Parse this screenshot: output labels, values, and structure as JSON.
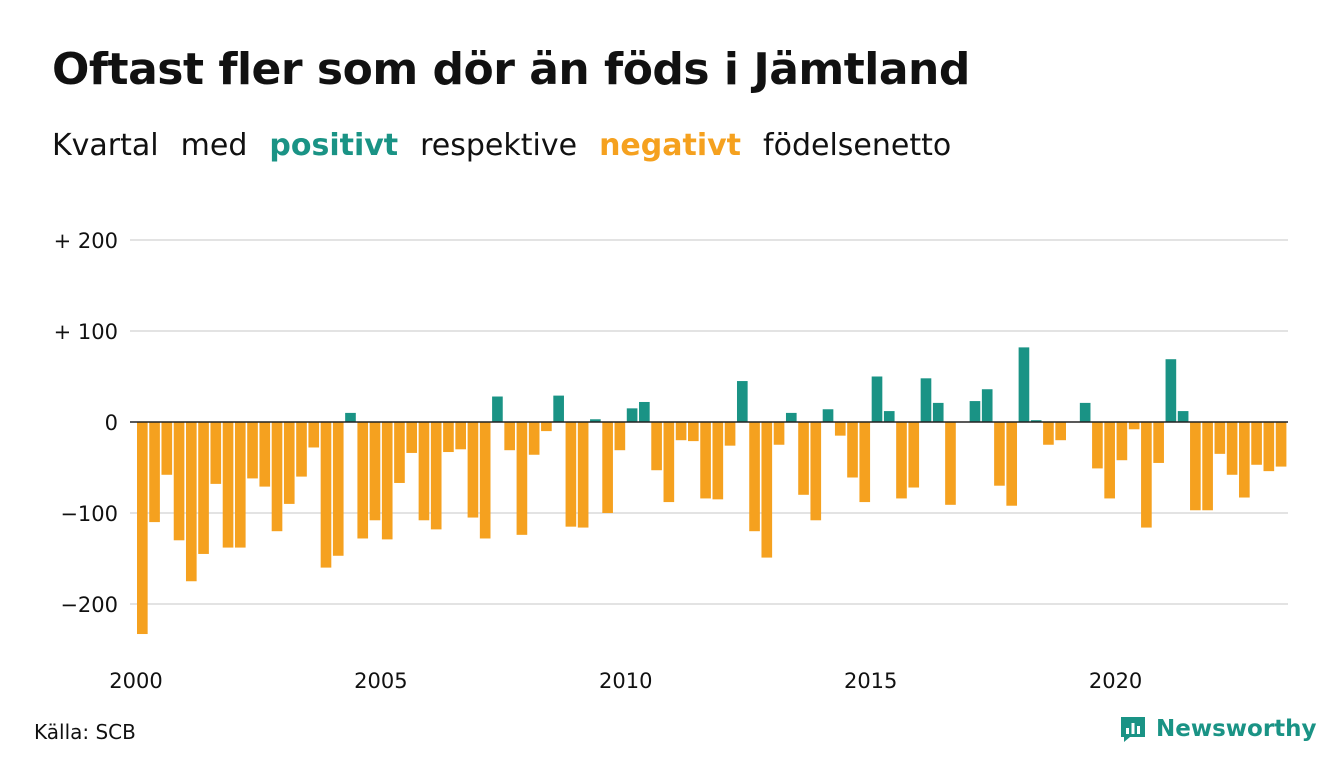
{
  "title": "Oftast fler som dör än föds i Jämtland",
  "subtitle": {
    "w1": "Kvartal",
    "w2": "med",
    "positive": "positivt",
    "w3": "respektive",
    "negative": "negativt",
    "w4": "födelsenetto"
  },
  "colors": {
    "positive": "#1a9385",
    "negative": "#f5a11f",
    "grid": "#e3e3e3",
    "zero_line": "#222222"
  },
  "source": "Källa: SCB",
  "brand": {
    "name": "Newsworthy",
    "icon": "newsworthy-logo-icon"
  },
  "chart_data": {
    "type": "bar",
    "x_start": "2000 Q1",
    "x_ticks": [
      {
        "value": 2000,
        "label": "2000"
      },
      {
        "value": 2005,
        "label": "2005"
      },
      {
        "value": 2010,
        "label": "2010"
      },
      {
        "value": 2015,
        "label": "2015"
      },
      {
        "value": 2020,
        "label": "2020"
      }
    ],
    "y_ticks": [
      {
        "value": 200,
        "label": "+ 200"
      },
      {
        "value": 100,
        "label": "+ 100"
      },
      {
        "value": 0,
        "label": "0"
      },
      {
        "value": -100,
        "label": "−100"
      },
      {
        "value": -200,
        "label": "−200"
      }
    ],
    "ylim": [
      -250,
      200
    ],
    "grid": true,
    "values": [
      -233,
      -110,
      -58,
      -130,
      -175,
      -145,
      -68,
      -138,
      -138,
      -62,
      -71,
      -120,
      -90,
      -60,
      -28,
      -160,
      -147,
      10,
      -128,
      -108,
      -129,
      -67,
      -34,
      -108,
      -118,
      -33,
      -30,
      -105,
      -128,
      28,
      -31,
      -124,
      -36,
      -10,
      29,
      -115,
      -116,
      3,
      -100,
      -31,
      15,
      22,
      -53,
      -88,
      -20,
      -21,
      -84,
      -85,
      -26,
      45,
      -120,
      -149,
      -25,
      10,
      -80,
      -108,
      14,
      -15,
      -61,
      -88,
      50,
      12,
      -84,
      -72,
      48,
      21,
      -91,
      0,
      23,
      36,
      -70,
      -92,
      82,
      2,
      -25,
      -20,
      0,
      21,
      -51,
      -84,
      -42,
      -8,
      -116,
      -45,
      69,
      12,
      -97,
      -97,
      -35,
      -58,
      -83,
      -47,
      -54,
      -49
    ]
  }
}
